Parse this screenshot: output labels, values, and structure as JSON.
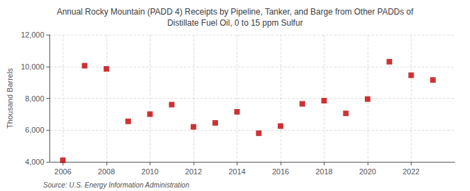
{
  "chart_data": {
    "type": "scatter",
    "title": "Annual Rocky Mountain (PADD 4) Receipts by Pipeline, Tanker, and Barge from Other PADDs of\nDistillate Fuel Oil, 0 to 15 ppm Sulfur",
    "ylabel": "Thousand Barrels",
    "source": "Source: U.S. Energy Information Administration",
    "x": [
      2006,
      2007,
      2008,
      2009,
      2010,
      2011,
      2012,
      2013,
      2014,
      2015,
      2016,
      2017,
      2018,
      2019,
      2020,
      2021,
      2022,
      2023
    ],
    "values": [
      4100,
      10050,
      9850,
      6550,
      7000,
      7600,
      6200,
      6450,
      7150,
      5800,
      6250,
      7650,
      7850,
      7050,
      7950,
      10300,
      9450,
      9150
    ],
    "color": "#c00000",
    "marker": "square",
    "xlim": [
      2005.4,
      2024.0
    ],
    "xticks": [
      2006,
      2008,
      2010,
      2012,
      2014,
      2016,
      2018,
      2020,
      2022
    ],
    "ylim": [
      4000,
      12000
    ],
    "yticks": [
      {
        "value": 4000,
        "label": "4,000"
      },
      {
        "value": 6000,
        "label": "6,000"
      },
      {
        "value": 8000,
        "label": "8,000"
      },
      {
        "value": 10000,
        "label": "10,000"
      },
      {
        "value": 12000,
        "label": "12,000"
      }
    ],
    "grid": true
  }
}
